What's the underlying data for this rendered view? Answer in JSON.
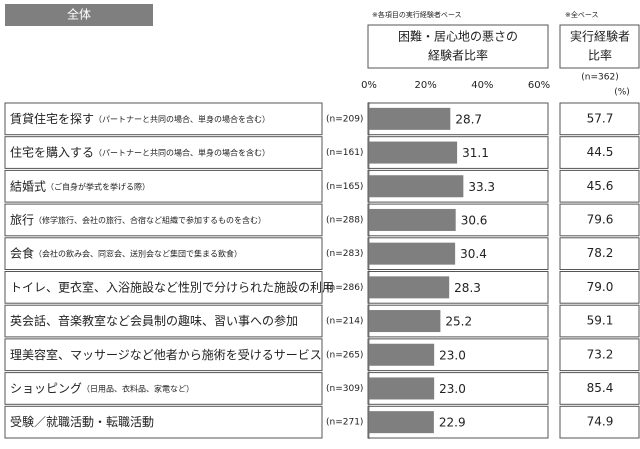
{
  "chart_data": {
    "type": "bar",
    "orientation": "horizontal",
    "section_label": "全体",
    "note": "※各項目の実行経験者ベース",
    "title_lines": [
      "困難・居心地の悪さの",
      "経験者比率"
    ],
    "categories": [
      "賃貸住宅を探す",
      "住宅を購入する",
      "結婚式",
      "旅行",
      "会食",
      "トイレ、更衣室、入浴施設など性別で分けられた施設の利用",
      "英会話、音楽教室など会員制の趣味、習い事への参加",
      "理美容室、マッサージなど他者から施術を受けるサービス",
      "ショッピング",
      "受験／就職活動・転職活動"
    ],
    "category_notes": [
      "（パートナーと共同の場合、単身の場合を含む）",
      "（パートナーと共同の場合、単身の場合を含む）",
      "（ご自身が挙式を挙げる際）",
      "（修学旅行、会社の旅行、合宿など組織で参加するものを含む）",
      "（会社の飲み会、同窓会、送別会など集団で集まる飲食）",
      null,
      null,
      null,
      "（日用品、衣料品、家電など）",
      null
    ],
    "n_labels": [
      "(n=209)",
      "(n=161)",
      "(n=165)",
      "(n=288)",
      "(n=283)",
      "(n=286)",
      "(n=214)",
      "(n=265)",
      "(n=309)",
      "(n=271)"
    ],
    "values": [
      28.7,
      31.1,
      33.3,
      30.6,
      30.4,
      28.3,
      25.2,
      23.0,
      23.0,
      22.9
    ],
    "value_labels": [
      "28.7",
      "31.1",
      "33.3",
      "30.6",
      "30.4",
      "28.3",
      "25.2",
      "23.0",
      "23.0",
      "22.9"
    ],
    "color": "#7f7f7f",
    "xlim": [
      0,
      60
    ],
    "xticks": [
      {
        "value": 0,
        "label": "0%"
      },
      {
        "value": 20,
        "label": "20%"
      },
      {
        "value": 40,
        "label": "40%"
      },
      {
        "value": 60,
        "label": "60%"
      }
    ],
    "side_column": {
      "note": "※全ベース",
      "title_lines": [
        "実行経験者",
        "比率"
      ],
      "n_label": "(n=362)",
      "unit": "(%)",
      "values": [
        57.7,
        44.5,
        45.6,
        79.6,
        78.2,
        79.0,
        59.1,
        73.2,
        85.4,
        74.9
      ],
      "value_labels": [
        "57.7",
        "44.5",
        "45.6",
        "79.6",
        "78.2",
        "79.0",
        "59.1",
        "73.2",
        "85.4",
        "74.9"
      ]
    }
  }
}
